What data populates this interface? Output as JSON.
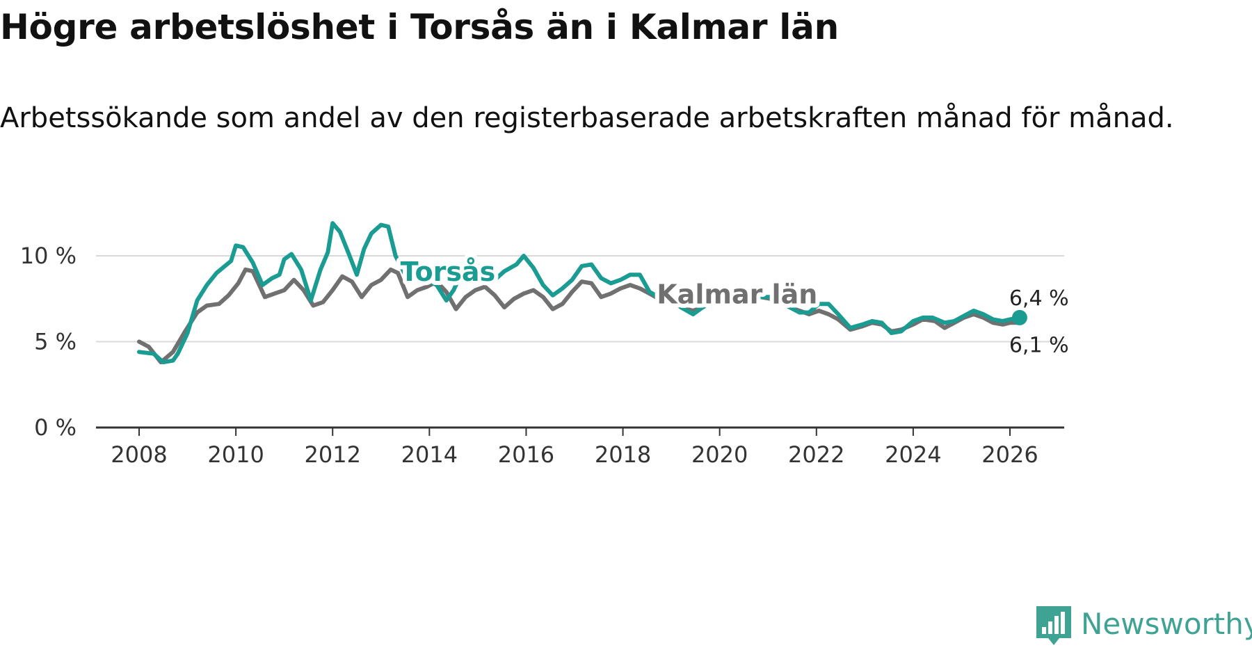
{
  "header": {
    "title": "Högre arbetslöshet i Torsås än i Kalmar län",
    "subtitle": "Arbetssökande som andel av den registerbaserade arbetskraften månad för månad."
  },
  "brand": {
    "name": "Newsworthy",
    "logo_icon": "newsworthy-chart-icon",
    "color": "#3fa394"
  },
  "colors": {
    "torsas": "#1a9c93",
    "kalmar": "#707070",
    "grid": "#d9d9d9",
    "axis": "#333333"
  },
  "chart_data": {
    "type": "line",
    "title": "Högre arbetslöshet i Torsås än i Kalmar län",
    "xlabel": "",
    "ylabel": "",
    "ylim": [
      0,
      12
    ],
    "xlim": [
      2007.1,
      2027.2
    ],
    "x_ticks": [
      2008,
      2010,
      2012,
      2014,
      2016,
      2018,
      2020,
      2022,
      2024,
      2026
    ],
    "x_tick_labels": [
      "2008",
      "2010",
      "2012",
      "2014",
      "2016",
      "2018",
      "2020",
      "2022",
      "2024",
      "2026"
    ],
    "y_ticks": [
      0,
      5,
      10
    ],
    "y_tick_labels": [
      "0 %",
      "5 %",
      "10 %"
    ],
    "grid": true,
    "series": [
      {
        "name": "Torsås",
        "label": "Torsås",
        "key": "torsas",
        "end_label": "6,4 %",
        "points": [
          [
            2008.0,
            4.4
          ],
          [
            2008.3,
            4.3
          ],
          [
            2008.5,
            3.8
          ],
          [
            2008.7,
            3.9
          ],
          [
            2008.8,
            4.3
          ],
          [
            2009.0,
            5.5
          ],
          [
            2009.2,
            7.4
          ],
          [
            2009.4,
            8.3
          ],
          [
            2009.6,
            9.0
          ],
          [
            2009.9,
            9.7
          ],
          [
            2010.0,
            10.6
          ],
          [
            2010.15,
            10.5
          ],
          [
            2010.35,
            9.6
          ],
          [
            2010.55,
            8.3
          ],
          [
            2010.75,
            8.7
          ],
          [
            2010.9,
            8.9
          ],
          [
            2011.0,
            9.8
          ],
          [
            2011.15,
            10.1
          ],
          [
            2011.35,
            9.2
          ],
          [
            2011.55,
            7.4
          ],
          [
            2011.75,
            9.2
          ],
          [
            2011.9,
            10.2
          ],
          [
            2012.0,
            11.9
          ],
          [
            2012.15,
            11.4
          ],
          [
            2012.35,
            10.0
          ],
          [
            2012.5,
            8.9
          ],
          [
            2012.65,
            10.4
          ],
          [
            2012.8,
            11.3
          ],
          [
            2013.0,
            11.8
          ],
          [
            2013.15,
            11.7
          ],
          [
            2013.3,
            10.0
          ],
          [
            2013.5,
            8.9
          ],
          [
            2013.75,
            8.6
          ],
          [
            2014.0,
            8.5
          ],
          [
            2014.15,
            8.3
          ],
          [
            2014.35,
            7.4
          ],
          [
            2014.5,
            8.0
          ],
          [
            2014.7,
            9.2
          ],
          [
            2014.9,
            9.5
          ],
          [
            2015.1,
            9.3
          ],
          [
            2015.35,
            8.6
          ],
          [
            2015.55,
            9.1
          ],
          [
            2015.8,
            9.5
          ],
          [
            2015.95,
            10.0
          ],
          [
            2016.15,
            9.3
          ],
          [
            2016.35,
            8.3
          ],
          [
            2016.55,
            7.7
          ],
          [
            2016.75,
            8.1
          ],
          [
            2016.95,
            8.6
          ],
          [
            2017.15,
            9.4
          ],
          [
            2017.35,
            9.5
          ],
          [
            2017.55,
            8.7
          ],
          [
            2017.75,
            8.4
          ],
          [
            2017.95,
            8.6
          ],
          [
            2018.15,
            8.9
          ],
          [
            2018.35,
            8.9
          ],
          [
            2018.55,
            7.9
          ],
          [
            2018.8,
            7.5
          ],
          [
            2019.0,
            7.5
          ],
          [
            2019.2,
            7.0
          ],
          [
            2019.45,
            6.6
          ],
          [
            2019.65,
            7.0
          ],
          [
            2019.85,
            7.4
          ],
          [
            2020.05,
            7.5
          ],
          [
            2020.25,
            7.8
          ],
          [
            2020.45,
            7.2
          ],
          [
            2020.65,
            7.6
          ],
          [
            2020.85,
            7.6
          ],
          [
            2021.05,
            7.6
          ],
          [
            2021.25,
            7.4
          ],
          [
            2021.45,
            7.0
          ],
          [
            2021.65,
            6.7
          ],
          [
            2021.85,
            6.7
          ],
          [
            2022.05,
            7.2
          ],
          [
            2022.25,
            7.2
          ],
          [
            2022.45,
            6.6
          ],
          [
            2022.7,
            5.8
          ],
          [
            2022.95,
            6.0
          ],
          [
            2023.15,
            6.2
          ],
          [
            2023.35,
            6.1
          ],
          [
            2023.55,
            5.5
          ],
          [
            2023.75,
            5.6
          ],
          [
            2024.0,
            6.2
          ],
          [
            2024.2,
            6.4
          ],
          [
            2024.4,
            6.4
          ],
          [
            2024.65,
            6.1
          ],
          [
            2024.85,
            6.2
          ],
          [
            2025.05,
            6.5
          ],
          [
            2025.25,
            6.8
          ],
          [
            2025.45,
            6.6
          ],
          [
            2025.65,
            6.3
          ],
          [
            2025.85,
            6.2
          ],
          [
            2026.0,
            6.3
          ],
          [
            2026.2,
            6.4
          ]
        ]
      },
      {
        "name": "Kalmar län",
        "label": "Kalmar län",
        "key": "kalmar",
        "end_label": "6,1 %",
        "points": [
          [
            2008.0,
            5.0
          ],
          [
            2008.2,
            4.7
          ],
          [
            2008.45,
            3.8
          ],
          [
            2008.7,
            4.4
          ],
          [
            2008.95,
            5.6
          ],
          [
            2009.2,
            6.7
          ],
          [
            2009.4,
            7.1
          ],
          [
            2009.65,
            7.2
          ],
          [
            2009.85,
            7.7
          ],
          [
            2010.05,
            8.4
          ],
          [
            2010.2,
            9.2
          ],
          [
            2010.35,
            9.1
          ],
          [
            2010.6,
            7.6
          ],
          [
            2010.8,
            7.8
          ],
          [
            2011.0,
            8.0
          ],
          [
            2011.2,
            8.6
          ],
          [
            2011.4,
            8.0
          ],
          [
            2011.6,
            7.1
          ],
          [
            2011.8,
            7.3
          ],
          [
            2012.0,
            8.0
          ],
          [
            2012.2,
            8.8
          ],
          [
            2012.4,
            8.5
          ],
          [
            2012.6,
            7.6
          ],
          [
            2012.8,
            8.3
          ],
          [
            2013.0,
            8.6
          ],
          [
            2013.2,
            9.2
          ],
          [
            2013.35,
            9.0
          ],
          [
            2013.55,
            7.6
          ],
          [
            2013.75,
            8.0
          ],
          [
            2013.95,
            8.2
          ],
          [
            2014.15,
            8.5
          ],
          [
            2014.35,
            7.9
          ],
          [
            2014.55,
            6.9
          ],
          [
            2014.75,
            7.6
          ],
          [
            2014.95,
            8.0
          ],
          [
            2015.15,
            8.2
          ],
          [
            2015.35,
            7.7
          ],
          [
            2015.55,
            7.0
          ],
          [
            2015.75,
            7.5
          ],
          [
            2015.95,
            7.8
          ],
          [
            2016.15,
            8.0
          ],
          [
            2016.35,
            7.6
          ],
          [
            2016.55,
            6.9
          ],
          [
            2016.75,
            7.2
          ],
          [
            2016.95,
            7.9
          ],
          [
            2017.15,
            8.5
          ],
          [
            2017.35,
            8.4
          ],
          [
            2017.55,
            7.6
          ],
          [
            2017.75,
            7.8
          ],
          [
            2017.95,
            8.1
          ],
          [
            2018.15,
            8.3
          ],
          [
            2018.35,
            8.1
          ],
          [
            2018.55,
            7.8
          ],
          [
            2018.8,
            7.4
          ],
          [
            2019.0,
            7.4
          ],
          [
            2019.2,
            7.0
          ],
          [
            2019.45,
            6.8
          ],
          [
            2019.65,
            7.0
          ],
          [
            2019.85,
            7.3
          ],
          [
            2020.05,
            7.5
          ],
          [
            2020.25,
            7.7
          ],
          [
            2020.45,
            7.3
          ],
          [
            2020.65,
            7.6
          ],
          [
            2020.85,
            7.6
          ],
          [
            2021.05,
            7.5
          ],
          [
            2021.25,
            7.3
          ],
          [
            2021.45,
            7.0
          ],
          [
            2021.65,
            6.8
          ],
          [
            2021.85,
            6.6
          ],
          [
            2022.05,
            6.8
          ],
          [
            2022.25,
            6.6
          ],
          [
            2022.45,
            6.3
          ],
          [
            2022.7,
            5.7
          ],
          [
            2022.95,
            5.9
          ],
          [
            2023.15,
            6.1
          ],
          [
            2023.35,
            6.0
          ],
          [
            2023.55,
            5.6
          ],
          [
            2023.75,
            5.7
          ],
          [
            2024.0,
            6.0
          ],
          [
            2024.2,
            6.3
          ],
          [
            2024.45,
            6.2
          ],
          [
            2024.65,
            5.8
          ],
          [
            2024.85,
            6.1
          ],
          [
            2025.05,
            6.4
          ],
          [
            2025.25,
            6.6
          ],
          [
            2025.45,
            6.4
          ],
          [
            2025.65,
            6.1
          ],
          [
            2025.85,
            6.0
          ],
          [
            2026.0,
            6.1
          ],
          [
            2026.2,
            6.1
          ]
        ]
      }
    ]
  }
}
